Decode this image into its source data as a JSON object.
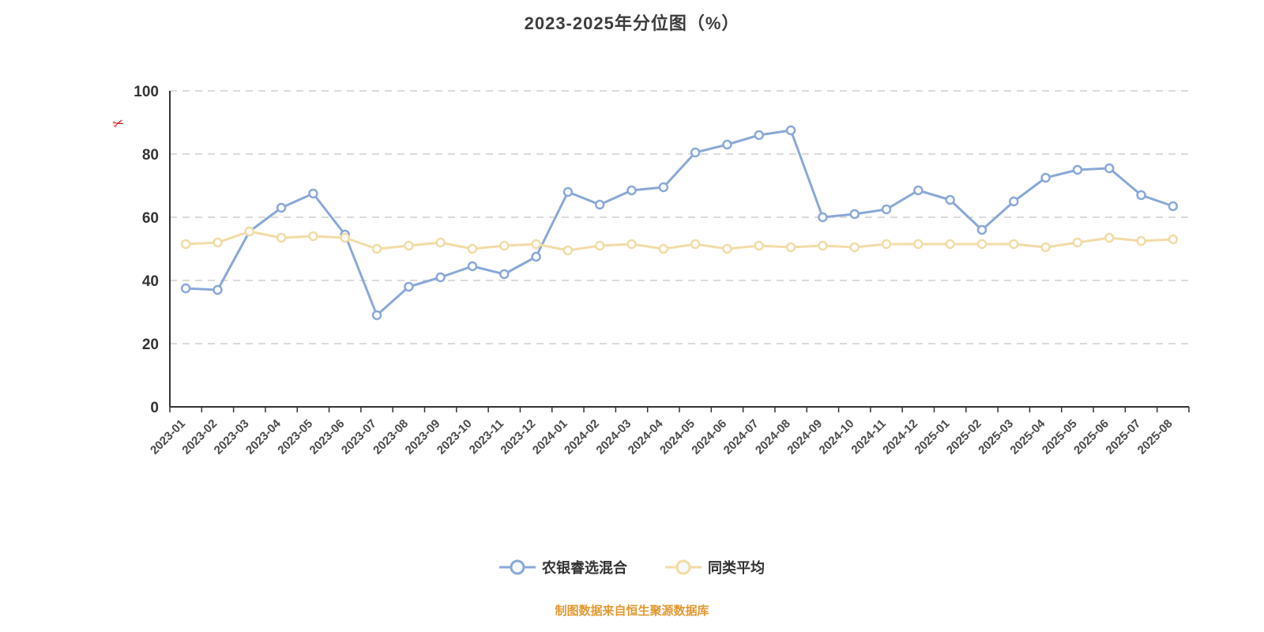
{
  "page": {
    "title": "2023-2025年分位图（%）",
    "source_note": "制图数据来自恒生聚源数据库",
    "red_annotation_glyph": "✂"
  },
  "chart_data": {
    "type": "line",
    "title": "2023-2025年分位图（%）",
    "xlabel": "",
    "ylabel": "%",
    "ylim": [
      0,
      100
    ],
    "yticks": [
      0,
      20,
      40,
      60,
      80,
      100
    ],
    "grid": "horizontal-dashed",
    "legend_position": "bottom",
    "categories": [
      "2023-01",
      "2023-02",
      "2023-03",
      "2023-04",
      "2023-05",
      "2023-06",
      "2023-07",
      "2023-08",
      "2023-09",
      "2023-10",
      "2023-11",
      "2023-12",
      "2024-01",
      "2024-02",
      "2024-03",
      "2024-04",
      "2024-05",
      "2024-06",
      "2024-07",
      "2024-08",
      "2024-09",
      "2024-10",
      "2024-11",
      "2024-12",
      "2025-01",
      "2025-02",
      "2025-03",
      "2025-04",
      "2025-05",
      "2025-06",
      "2025-07",
      "2025-08"
    ],
    "series": [
      {
        "name": "农银睿选混合",
        "color": "#8aa8d8",
        "line_width": 3,
        "values": [
          37.5,
          37,
          55.5,
          63,
          67.5,
          54.5,
          29,
          38,
          41,
          44.5,
          42,
          47.5,
          68,
          64,
          68.5,
          69.5,
          80.5,
          83,
          86,
          87.5,
          60,
          61,
          62.5,
          68.5,
          65.5,
          56,
          65,
          72.5,
          75,
          75.5,
          67,
          63.5
        ]
      },
      {
        "name": "同类平均",
        "color": "#f2dca6",
        "line_width": 3,
        "values": [
          51.5,
          52,
          55.5,
          53.5,
          54,
          53.5,
          50,
          51,
          52,
          50,
          51,
          51.5,
          49.5,
          51,
          51.5,
          50,
          51.5,
          50,
          51,
          50.5,
          51,
          50.5,
          51.5,
          51.5,
          51.5,
          51.5,
          51.5,
          50.5,
          52,
          53.5,
          52.5,
          53
        ]
      }
    ]
  },
  "colors": {
    "axis": "#333333",
    "gridline": "#cfcfcf",
    "title_text": "#3c3c3c",
    "source_text": "#e2982f",
    "annotation_red": "#cc1111"
  }
}
